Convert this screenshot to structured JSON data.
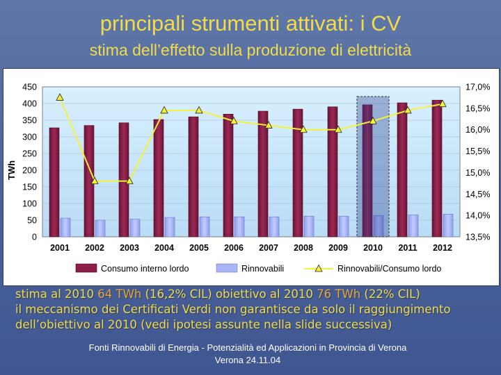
{
  "slide": {
    "title": "principali strumenti attivati: i CV",
    "subtitle": "stima dell’effetto sulla produzione di elettricità"
  },
  "notes": {
    "line1_a": "stima al 2010 ",
    "line1_b": "64 TWh",
    "line1_c": " (16,2% CIL) obiettivo al 2010 ",
    "line1_d": "76 TWh",
    "line1_e": " (22% CIL)",
    "line2": "il meccanismo dei Certificati Verdi non garantisce da solo il raggiungimento",
    "line3": "dell’obiettivo al 2010 (vedi ipotesi assunte nella slide successiva)"
  },
  "footer": {
    "line1": "Fonti Rinnovabili di Energia - Potenzialità ed Applicazioni in Provincia di Verona",
    "line2": "Verona 24.11.04"
  },
  "chart_data": {
    "type": "bar",
    "categories": [
      "2001",
      "2002",
      "2003",
      "2004",
      "2005",
      "2006",
      "2007",
      "2008",
      "2009",
      "2010",
      "2011",
      "2012"
    ],
    "ylabel": "TWh",
    "ylim": [
      0,
      450
    ],
    "yticks": [
      0,
      50,
      100,
      150,
      200,
      250,
      300,
      350,
      400,
      450
    ],
    "y2lim": [
      13.5,
      17.0
    ],
    "y2ticks": [
      "13,5%",
      "14,0%",
      "14,5%",
      "15,0%",
      "15,5%",
      "16,0%",
      "16,5%",
      "17,0%"
    ],
    "y2tick_values": [
      13.5,
      14.0,
      14.5,
      15.0,
      15.5,
      16.0,
      16.5,
      17.0
    ],
    "highlight_category": "2010",
    "legend_position": "bottom",
    "series": [
      {
        "name": "Consumo interno lordo",
        "kind": "bar",
        "color": "#8c1f4a",
        "values": [
          327,
          334,
          342,
          352,
          360,
          368,
          377,
          383,
          390,
          396,
          402,
          410
        ]
      },
      {
        "name": "Rinnovabili",
        "kind": "bar",
        "color": "#a8b4f5",
        "values": [
          56,
          50,
          53,
          58,
          60,
          60,
          60,
          62,
          62,
          64,
          66,
          68
        ]
      },
      {
        "name": "Rinnovabili/Consumo lordo",
        "kind": "line",
        "axis": "secondary",
        "color": "#f2f23a",
        "values": [
          16.75,
          14.8,
          14.8,
          16.45,
          16.45,
          16.2,
          16.1,
          16.0,
          16.0,
          16.2,
          16.45,
          16.6
        ]
      }
    ]
  }
}
